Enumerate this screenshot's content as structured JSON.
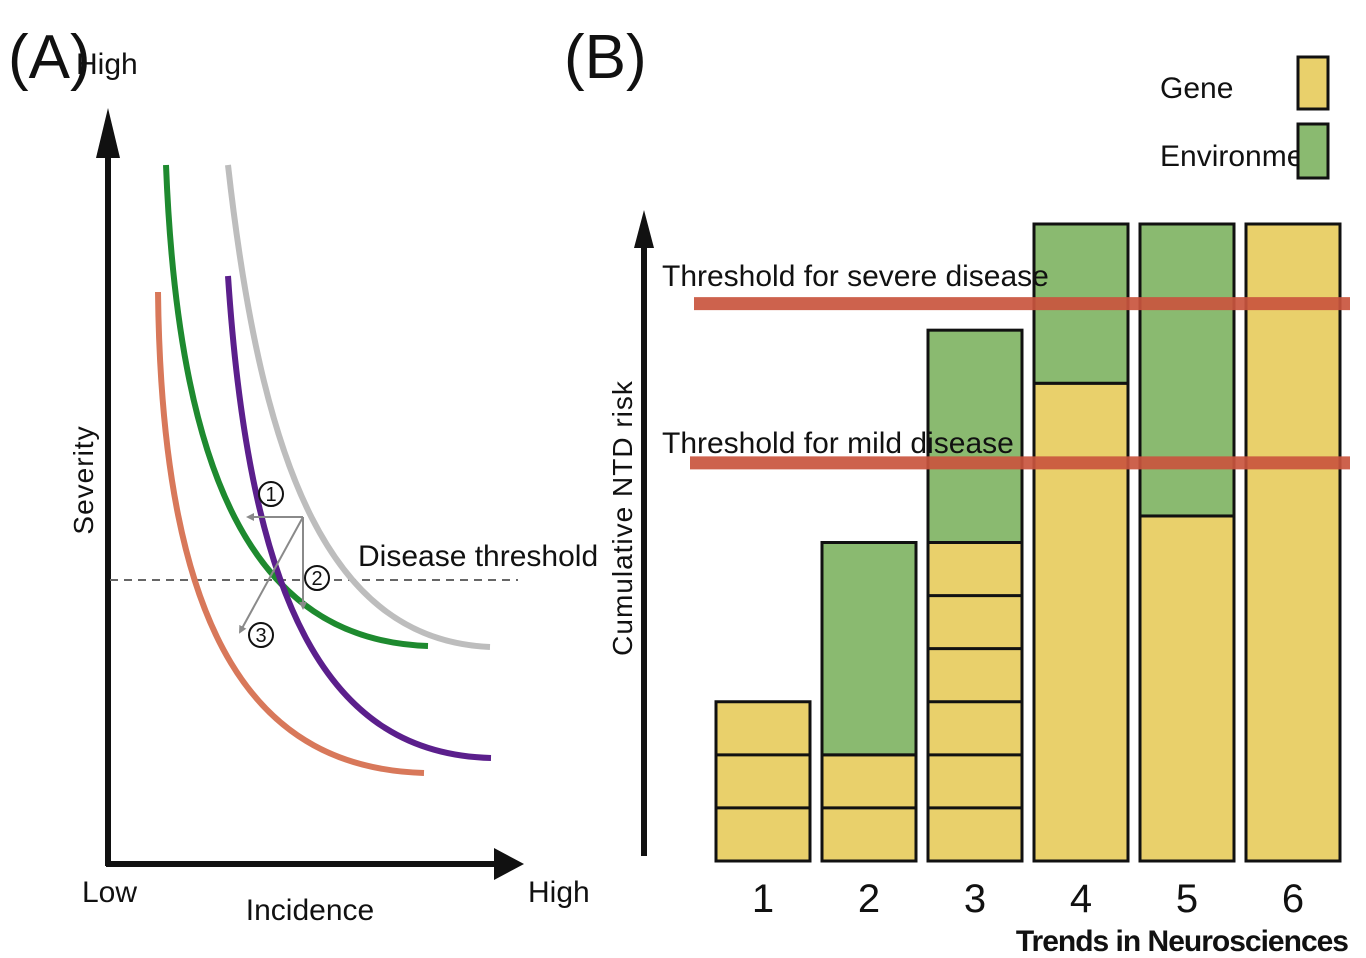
{
  "panel_a": {
    "label": "(A)",
    "y_axis": {
      "label": "Severity",
      "high_label": "High"
    },
    "x_axis": {
      "label": "Incidence",
      "low_label": "Low",
      "high_label": "High"
    },
    "threshold_label": "Disease threshold",
    "markers": [
      "1",
      "2",
      "3"
    ],
    "curves": [
      {
        "color": "#bdbdbd"
      },
      {
        "color": "#1e8a2f"
      },
      {
        "color": "#5b1f8c"
      },
      {
        "color": "#d8785a"
      }
    ]
  },
  "panel_b": {
    "label": "(B)",
    "y_axis_label": "Cumulative NTD risk",
    "legend": [
      {
        "label": "Gene",
        "color": "#e9d06b"
      },
      {
        "label": "Environment",
        "color": "#8aba70"
      }
    ],
    "thresholds": [
      {
        "label": "Threshold for severe disease",
        "color": "#c9553e"
      },
      {
        "label": "Threshold for mild disease",
        "color": "#c9553e"
      }
    ],
    "categories": [
      "1",
      "2",
      "3",
      "4",
      "5",
      "6"
    ]
  },
  "chart_data": {
    "type": "bar",
    "categories": [
      "1",
      "2",
      "3",
      "4",
      "5",
      "6"
    ],
    "series": [
      {
        "name": "Gene",
        "values": [
          3,
          2,
          6,
          9,
          6.5,
          12
        ]
      },
      {
        "name": "Environment",
        "values": [
          0,
          4,
          4,
          3,
          5.5,
          0
        ]
      }
    ],
    "gene_units_per_bar": [
      3,
      2,
      6,
      1,
      1,
      1
    ],
    "thresholds": {
      "mild": 7.5,
      "severe": 10.5
    },
    "ylim": [
      0,
      12.5
    ],
    "ylabel": "Cumulative NTD risk",
    "legend_position": "top-right"
  },
  "footer": {
    "text": "Trends in Neurosciences"
  }
}
